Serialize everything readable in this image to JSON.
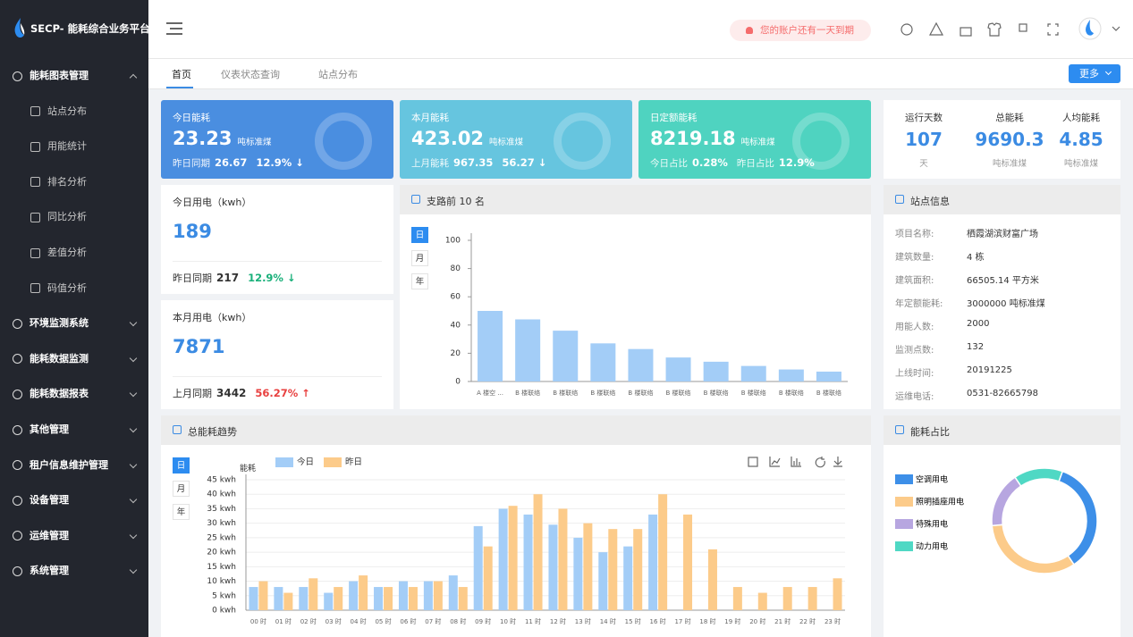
{
  "sidebar": {
    "logo": "SECP- 能耗综合业务平台",
    "menu": [
      {
        "label": "能耗图表管理",
        "children": [
          "站点分布",
          "用能统计",
          "排名分析",
          "同比分析",
          "差值分析",
          "码值分析"
        ]
      },
      {
        "label": "环境监测系统"
      },
      {
        "label": "能耗数据监测"
      },
      {
        "label": "能耗数据报表"
      },
      {
        "label": "其他管理"
      },
      {
        "label": "租户信息维护管理"
      },
      {
        "label": "设备管理"
      },
      {
        "label": "运维管理"
      },
      {
        "label": "系统管理"
      }
    ]
  },
  "header": {
    "notice": "您的账户还有一天到期"
  },
  "tabs": [
    "首页",
    "仪表状态查询",
    "站点分布"
  ],
  "more": "更多",
  "cards": [
    {
      "title": "今日能耗",
      "value": "23.23",
      "unit": "吨标准煤",
      "foot": [
        {
          "label": "昨日同期",
          "value": "26.67"
        },
        {
          "value": "12.9% ↓"
        }
      ]
    },
    {
      "title": "本月能耗",
      "value": "423.02",
      "unit": "吨标准煤",
      "foot": [
        {
          "label": "上月能耗",
          "value": "967.35"
        },
        {
          "value": "56.27 ↓"
        }
      ]
    },
    {
      "title": "日定额能耗",
      "value": "8219.18",
      "unit": "吨标准煤",
      "foot": [
        {
          "label": "今日占比",
          "value": "0.28%"
        },
        {
          "label": "昨日占比",
          "value": "12.9%"
        }
      ]
    }
  ],
  "stats": [
    {
      "label": "运行天数",
      "value": "107",
      "unit": "天"
    },
    {
      "label": "总能耗",
      "value": "9690.3",
      "unit": "吨标准煤"
    },
    {
      "label": "人均能耗",
      "value": "4.85",
      "unit": "吨标准煤"
    }
  ],
  "power": [
    {
      "title": "今日用电（kwh）",
      "value": "189",
      "compare_label": "昨日同期",
      "compare_value": "217",
      "change": "12.9% ↓",
      "change_color": "#19b07a"
    },
    {
      "title": "本月用电（kwh）",
      "value": "7871",
      "compare_label": "上月同期",
      "compare_value": "3442",
      "change": "56.27% ↑",
      "change_color": "#e8403f"
    }
  ],
  "branch_chart": {
    "type": "bar",
    "title": "支路前 10 名",
    "periods": [
      "日",
      "月",
      "年"
    ],
    "categories": [
      "A 楼空 ...",
      "B 楼联络",
      "B 楼联络",
      "B 楼联络",
      "B 楼联络",
      "B 楼联络",
      "B 楼联络",
      "B 楼联络",
      "B 楼联络",
      "B 楼联络"
    ],
    "values": [
      50,
      44,
      36,
      27,
      23,
      17,
      14,
      11,
      8.5,
      7
    ],
    "color": "#a3cdf7",
    "ylim": [
      0,
      100
    ],
    "yticks": [
      0,
      20,
      40,
      60,
      80,
      100
    ]
  },
  "station": {
    "title": "站点信息",
    "fields": [
      {
        "label": "项目名称:",
        "value": "栖霞湖滨财富广场"
      },
      {
        "label": "建筑数量:",
        "value": "4 栋"
      },
      {
        "label": "建筑面积:",
        "value": "66505.14 平方米"
      },
      {
        "label": "年定额能耗:",
        "value": "3000000 吨标准煤"
      },
      {
        "label": "用能人数:",
        "value": "2000"
      },
      {
        "label": "监测点数:",
        "value": "132"
      },
      {
        "label": "上线时间:",
        "value": "20191225"
      },
      {
        "label": "运维电话:",
        "value": "0531-82665798"
      }
    ]
  },
  "trend_chart": {
    "type": "bar",
    "title": "总能耗趋势",
    "periods": [
      "日",
      "月",
      "年"
    ],
    "y_label": "能耗",
    "categories": [
      "00 时",
      "01 时",
      "02 时",
      "03 时",
      "04 时",
      "05 时",
      "06 时",
      "07 时",
      "08 时",
      "09 时",
      "10 时",
      "11 时",
      "12 时",
      "13 时",
      "14 时",
      "15 时",
      "16 时",
      "17 时",
      "18 时",
      "19 时",
      "20 时",
      "21 时",
      "22 时",
      "23 时"
    ],
    "series": [
      {
        "name": "今日",
        "color": "#a3cdf7",
        "values": [
          8,
          8,
          8,
          6,
          10,
          8,
          10,
          10,
          12,
          29,
          35,
          33,
          29.5,
          25,
          20,
          22,
          33,
          null,
          null,
          null,
          null,
          null,
          null,
          null
        ]
      },
      {
        "name": "昨日",
        "color": "#fccb8a",
        "values": [
          10,
          6,
          11,
          8,
          12,
          8,
          8,
          10,
          8,
          22,
          36,
          40,
          35,
          30,
          28,
          28,
          40,
          33,
          21,
          8,
          6,
          8,
          8,
          11
        ]
      }
    ],
    "ylim": [
      0,
      45
    ],
    "yticks": [
      {
        "value": 0,
        "label": "0 kwh"
      },
      {
        "value": 5,
        "label": "5 kwh"
      },
      {
        "value": 10,
        "label": "10 kwh"
      },
      {
        "value": 15,
        "label": "15 kwh"
      },
      {
        "value": 20,
        "label": "20 kwh"
      },
      {
        "value": 25,
        "label": "25 kwh"
      },
      {
        "value": 30,
        "label": "30 kwh"
      },
      {
        "value": 35,
        "label": "35 kwh"
      },
      {
        "value": 40,
        "label": "40 kwh"
      },
      {
        "value": 45,
        "label": "45 kwh"
      }
    ],
    "grid": true
  },
  "share_chart": {
    "type": "pie",
    "title": "能耗占比",
    "categories": [
      "空调用电",
      "照明插座用电",
      "特殊用电",
      "动力用电"
    ],
    "values": [
      35,
      33,
      17,
      15
    ],
    "colors": [
      "#3d8fe8",
      "#fccb8a",
      "#b7a6e0",
      "#4fd8c4"
    ]
  }
}
